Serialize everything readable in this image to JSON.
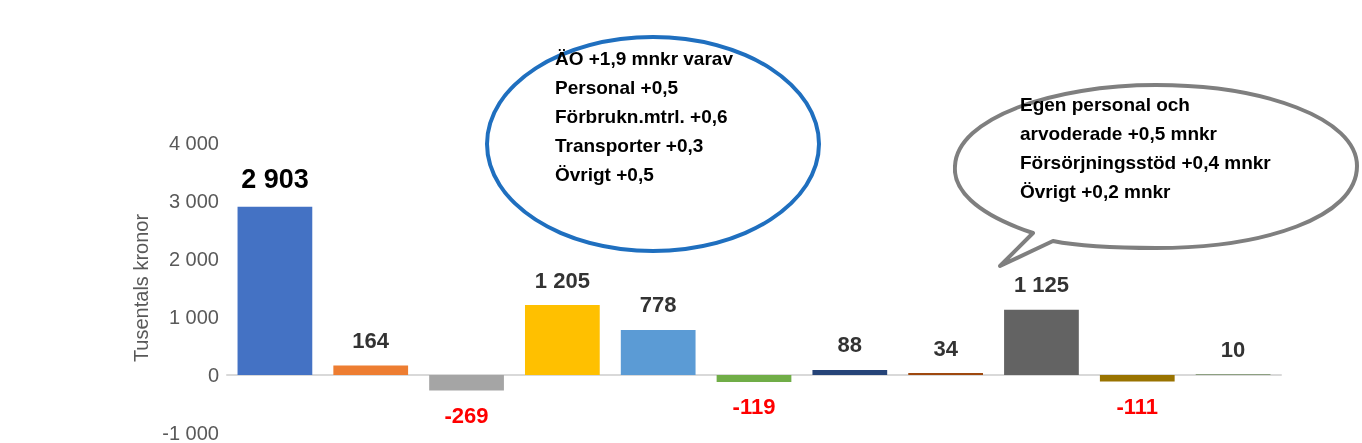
{
  "chart_data": {
    "type": "bar",
    "ylabel": "Tusentals kronor",
    "categories": [
      null,
      null,
      null,
      null,
      null,
      null,
      null,
      null,
      null,
      null,
      null
    ],
    "values": [
      2903,
      164,
      -269,
      1205,
      778,
      -119,
      88,
      34,
      1125,
      -111,
      10
    ],
    "colors": [
      "#4472c4",
      "#ed7d31",
      "#a5a5a5",
      "#ffc000",
      "#5b9bd5",
      "#70ad47",
      "#264478",
      "#9e480e",
      "#636363",
      "#997300",
      "#43682b"
    ],
    "value_labels": [
      "2 903",
      "164",
      "-269",
      "1 205",
      "778",
      "-119",
      "88",
      "34",
      "1 125",
      "-111",
      "10"
    ],
    "ylim": [
      -1000,
      4000
    ],
    "yticks": [
      {
        "value": -1000,
        "label": "-1 000"
      },
      0,
      {
        "value": 1000,
        "label": "1 000"
      },
      {
        "value": 2000,
        "label": "2 000"
      },
      {
        "value": 3000,
        "label": "3 000"
      },
      {
        "value": 4000,
        "label": "4 000"
      }
    ],
    "tick_labels": "y",
    "annotations": [
      "ÄO +1,9 mnkr varav\nPersonal +0,5\nFörbrukn.mtrl. +0,6\nTransporter +0,3\nÖvrigt +0,5",
      "Egen personal och\narvoderade +0,5 mnkr\nFörsörjningsstöd +0,4 mnkr\nÖvrigt +0,2 mnkr"
    ]
  }
}
